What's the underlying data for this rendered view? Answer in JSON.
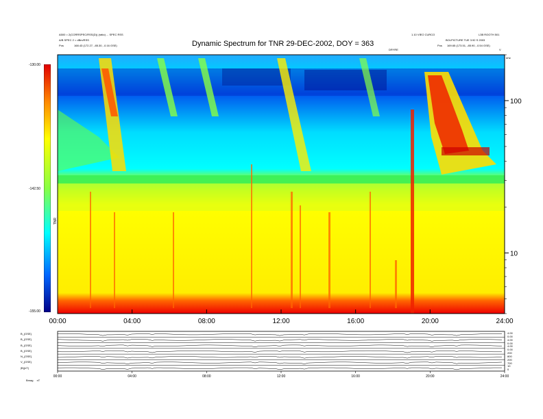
{
  "header": {
    "left_line1": "A500 = 2(CORRSPEC/RSS(D)) (ratio) ... SPEC RSS",
    "left_line2": "A/B SPEC 2 = dBm/RSS",
    "left_pos_label": "Pos",
    "left_pos_value": "168.43 (172.27, -85.30, -0.16 GSE)",
    "right_top1": "1.10 VIEO CURCO",
    "right_top2": "L3B ROOTH 501",
    "right_line2": "BOLPICTURE TUE 3.92 S 2003",
    "right_pos_label": "Pos",
    "right_pos_value": "169.65 (173.51, -85.90, -0.54 GSE)",
    "mid_marker": "DRYRE",
    "corner_v": "V",
    "corner_khz": "kHz"
  },
  "title": "Dynamic Spectrum for TNR 29-DEC-2002, DOY = 363",
  "colorbar": {
    "max_label": "-130.00",
    "mid_label": "-142.50",
    "min_label": "-155.00",
    "side_label": "TNR"
  },
  "chart_data": {
    "type": "heatmap",
    "title": "Dynamic Spectrum for TNR 29-DEC-2002, DOY = 363",
    "x_label": "",
    "y_label": "kHz",
    "x_ticks": [
      "00:00",
      "04:00",
      "08:00",
      "12:00",
      "16:00",
      "20:00",
      "24:00"
    ],
    "x_range": [
      "00:00",
      "24:00"
    ],
    "y_scale": "log",
    "y_ticks": [
      10,
      100
    ],
    "y_range": [
      4,
      200
    ],
    "colorbar_range": [
      -155.0,
      -130.0
    ],
    "colorbar_ticks": [
      -130.0,
      -142.5,
      -155.0
    ],
    "features": [
      {
        "name": "type III burst",
        "start": "02:20",
        "end": "03:10"
      },
      {
        "name": "type III burst",
        "start": "12:00",
        "end": "13:10"
      },
      {
        "name": "bright emission",
        "start": "19:00",
        "end": "19:10"
      },
      {
        "name": "intense emission",
        "start": "19:50",
        "end": "22:30"
      }
    ]
  },
  "lower_panel": {
    "row_labels": [
      "B_{GSE}",
      "B_{GSE}",
      "B_{GSE}",
      "B_{GSE}",
      "N_{GSE}",
      "V_{GSE}",
      "|B|(nT)"
    ],
    "right_labels": [
      "4.00",
      "0.00",
      "4.00",
      "0.00",
      "4.00",
      "0.00",
      "200",
      "800",
      "200",
      "700",
      "10",
      "0"
    ],
    "x_ticks": [
      "00:00",
      "04:00",
      "08:00",
      "12:00",
      "16:00",
      "20:00",
      "24:00"
    ],
    "footer_left": "Bmag",
    "footer_unit": "nT"
  }
}
